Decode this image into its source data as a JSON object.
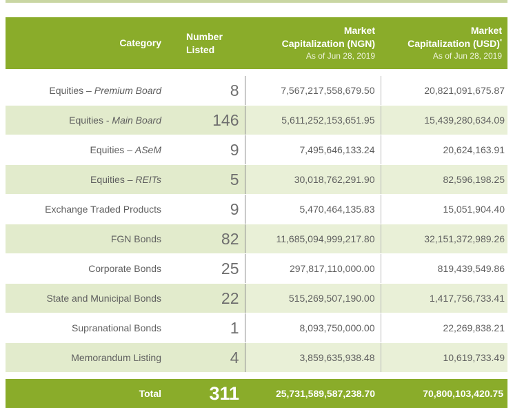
{
  "header": {
    "category": "Category",
    "number_line1": "Number",
    "number_line2": "Listed",
    "ngn_line1": "Market",
    "ngn_line2": "Capitalization (NGN)",
    "ngn_asof": "As of Jun 28, 2019",
    "usd_line1": "Market",
    "usd_line2": "Capitalization  (USD)",
    "usd_sup": "*",
    "usd_asof": "As of Jun 28, 2019"
  },
  "rows": [
    {
      "prefix": "Equities – ",
      "emph": "Premium Board",
      "number": "8",
      "ngn": "7,567,217,558,679.50",
      "usd": "20,821,091,675.87"
    },
    {
      "prefix": "Equities - ",
      "emph": "Main Board",
      "number": "146",
      "ngn": "5,611,252,153,651.95",
      "usd": "15,439,280,634.09"
    },
    {
      "prefix": "Equities – ",
      "emph": "ASeM",
      "number": "9",
      "ngn": "7,495,646,133.24",
      "usd": "20,624,163.91"
    },
    {
      "prefix": "Equities – ",
      "emph": "REITs",
      "number": "5",
      "ngn": "30,018,762,291.90",
      "usd": "82,596,198.25"
    },
    {
      "prefix": "Exchange Traded Products",
      "emph": "",
      "number": "9",
      "ngn": "5,470,464,135.83",
      "usd": "15,051,904.40"
    },
    {
      "prefix": "FGN Bonds",
      "emph": "",
      "number": "82",
      "ngn": "11,685,094,999,217.80",
      "usd": "32,151,372,989.26"
    },
    {
      "prefix": "Corporate Bonds",
      "emph": "",
      "number": "25",
      "ngn": "297,817,110,000.00",
      "usd": "819,439,549.86"
    },
    {
      "prefix": "State and Municipal Bonds",
      "emph": "",
      "number": "22",
      "ngn": "515,269,507,190.00",
      "usd": "1,417,756,733.41"
    },
    {
      "prefix": "Supranational Bonds",
      "emph": "",
      "number": "1",
      "ngn": "8,093,750,000.00",
      "usd": "22,269,838.21"
    },
    {
      "prefix": "Memorandum Listing",
      "emph": "",
      "number": "4",
      "ngn": "3,859,635,938.48",
      "usd": "10,619,733.49"
    }
  ],
  "total": {
    "label": "Total",
    "number": "311",
    "ngn": "25,731,589,587,238.70",
    "usd": "70,800,103,420.75"
  },
  "colors": {
    "header_green": "#8aac2a",
    "row_tint": "#e9f0d7"
  }
}
